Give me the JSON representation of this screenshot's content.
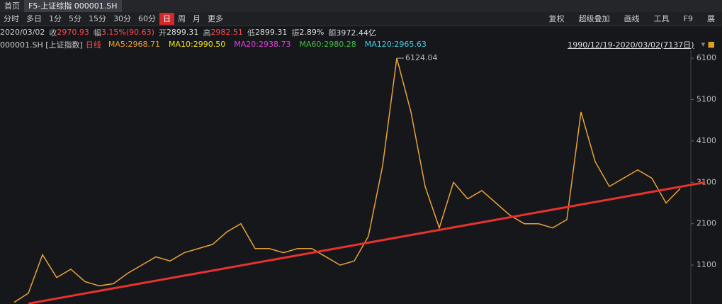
{
  "tabs": [
    "首页",
    "F5-上证综指 000001.SH"
  ],
  "toolbar": {
    "periods": [
      "分时",
      "多日",
      "1分",
      "5分",
      "15分",
      "30分",
      "60分",
      "日",
      "周",
      "月",
      "更多"
    ],
    "selected_index": 7,
    "tools": [
      "复权",
      "超级叠加",
      "画线",
      "工具",
      "F9",
      "展"
    ]
  },
  "quote": {
    "date": "2020/03/02",
    "items": [
      {
        "label": "收",
        "value": "2970.93",
        "color": "#ff4a4a"
      },
      {
        "label": "幅",
        "value": "3.15%(90.63)",
        "color": "#ff4a4a"
      },
      {
        "label": "开",
        "value": "2899.31",
        "color": "#dddddd"
      },
      {
        "label": "高",
        "value": "2982.51",
        "color": "#ff4a4a"
      },
      {
        "label": "低",
        "value": "2899.31",
        "color": "#dddddd"
      },
      {
        "label": "振",
        "value": "2.89%",
        "color": "#dddddd"
      },
      {
        "label": "额",
        "value": "3972.44亿",
        "color": "#dddddd"
      }
    ]
  },
  "indicators": {
    "code": "000001.SH [上证指数]",
    "period": "日线",
    "ma": [
      {
        "text": "MA5:2968.71",
        "color": "#f0a030"
      },
      {
        "text": "MA10:2990.50",
        "color": "#f0e020"
      },
      {
        "text": "MA20:2938.73",
        "color": "#e040e0"
      },
      {
        "text": "MA60:2980.28",
        "color": "#40c040"
      },
      {
        "text": "MA120:2965.63",
        "color": "#40d0e0"
      }
    ],
    "range": "1990/12/19-2020/03/02(7137日)"
  },
  "chart_data": {
    "type": "line",
    "categories": [
      null,
      null,
      null,
      null,
      null,
      null,
      null,
      null,
      null,
      null,
      null,
      null,
      null,
      null,
      null,
      null,
      null,
      null,
      null,
      null,
      null,
      null,
      null,
      null,
      null,
      null,
      null,
      null,
      null,
      null,
      null,
      null,
      null,
      null,
      null,
      null,
      null,
      null,
      null,
      null,
      null,
      null,
      null,
      null,
      null,
      null,
      null,
      null
    ],
    "series": [
      {
        "color": "#e8a23a",
        "values": [
          200,
          420,
          1350,
          800,
          1000,
          700,
          600,
          650,
          900,
          1100,
          1300,
          1200,
          1400,
          1500,
          1600,
          1900,
          2100,
          1500,
          1500,
          1400,
          1500,
          1500,
          1300,
          1100,
          1200,
          1800,
          3500,
          6100,
          4800,
          3000,
          2000,
          3100,
          2700,
          2900,
          2600,
          2300,
          2100,
          2100,
          2000,
          2200,
          4800,
          3600,
          3000,
          3200,
          3400,
          3200,
          2600,
          2950
        ]
      }
    ],
    "trendline": {
      "color": "#e8322d",
      "values": [
        170,
        3100
      ]
    },
    "annotation": "6124.04",
    "ylim": [
      160,
      6290
    ],
    "yticks": [
      1100,
      2100,
      3100,
      4100,
      5100,
      6100
    ]
  }
}
